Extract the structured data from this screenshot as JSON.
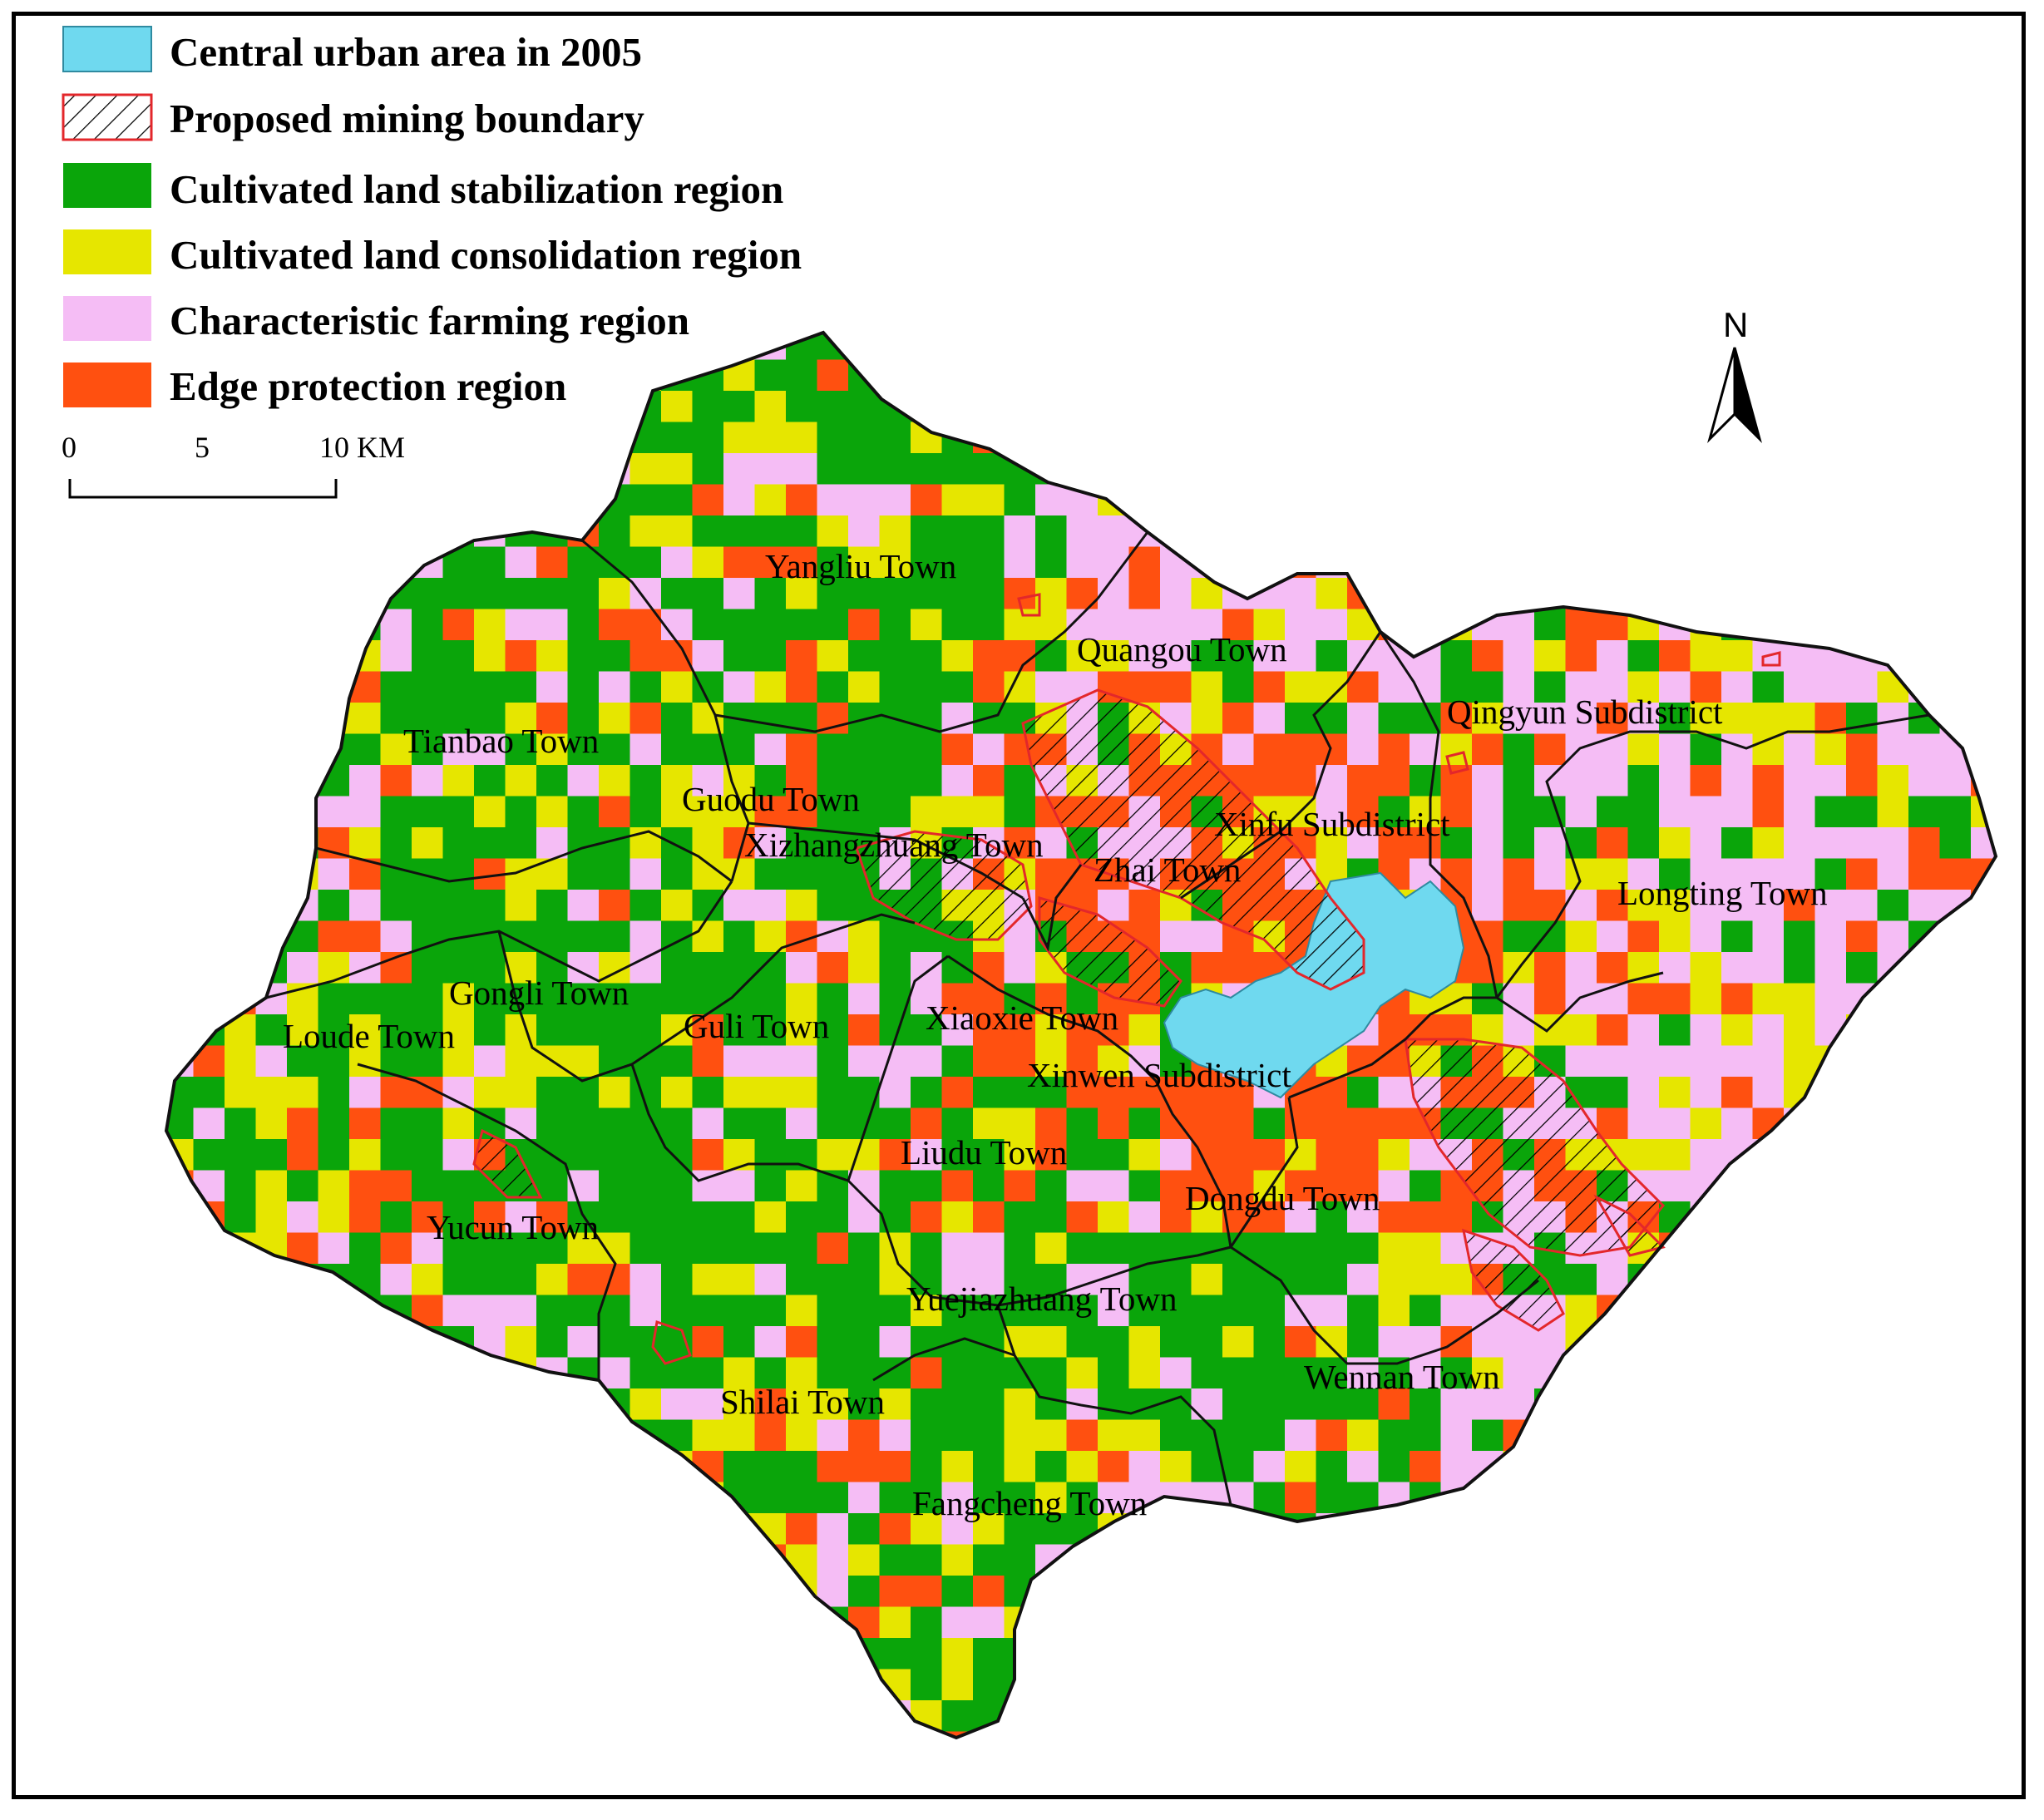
{
  "legend": {
    "items": [
      {
        "key": "urban",
        "label": "Central urban area in 2005",
        "color": "#6fd9ef"
      },
      {
        "key": "mining",
        "label": "Proposed mining boundary",
        "color": "#e3272b"
      },
      {
        "key": "stabilization",
        "label": "Cultivated land stabilization region",
        "color": "#0aa50a"
      },
      {
        "key": "consolidation",
        "label": "Cultivated land consolidation region",
        "color": "#e6e600"
      },
      {
        "key": "farming",
        "label": "Characteristic farming region",
        "color": "#f5bdf5"
      },
      {
        "key": "edge",
        "label": "Edge protection region",
        "color": "#ff5010"
      }
    ]
  },
  "scale_bar": {
    "ticks": [
      "0",
      "5",
      "10 KM"
    ]
  },
  "north_arrow": {
    "label": "N",
    "icon": "north-arrow-icon"
  },
  "towns": [
    {
      "name": "Yangliu Town"
    },
    {
      "name": "Quangou Town"
    },
    {
      "name": "Tianbao Town"
    },
    {
      "name": "Qingyun Subdistrict"
    },
    {
      "name": "Guodu Town"
    },
    {
      "name": "Xizhangzhuang Town"
    },
    {
      "name": "Xinfu Subdistrict"
    },
    {
      "name": "Zhai Town"
    },
    {
      "name": "Longting Town"
    },
    {
      "name": "Gongli Town"
    },
    {
      "name": "Loude Town"
    },
    {
      "name": "Guli  Town"
    },
    {
      "name": "Xiaoxie Town"
    },
    {
      "name": "Xinwen Subdistrict"
    },
    {
      "name": "Liudu Town"
    },
    {
      "name": "Dongdu Town"
    },
    {
      "name": "Yucun Town"
    },
    {
      "name": "Yuejiazhuang Town"
    },
    {
      "name": "Wennan Town"
    },
    {
      "name": "Shilai Town"
    },
    {
      "name": "Fangcheng Town"
    }
  ]
}
